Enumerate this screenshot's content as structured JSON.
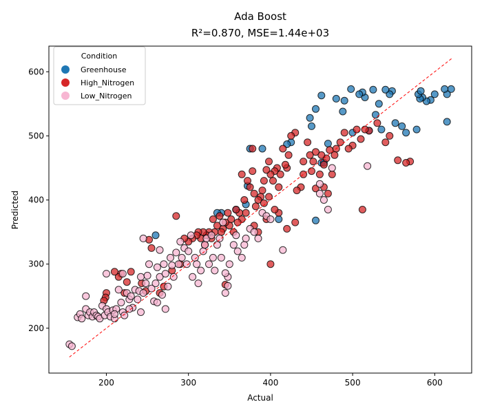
{
  "chart_data": {
    "type": "scatter",
    "title": "Ada Boost",
    "subtitle": "R²=0.870, MSE=1.44e+03",
    "xlabel": "Actual",
    "ylabel": "Predicted",
    "xlim": [
      130,
      645
    ],
    "ylim": [
      130,
      640
    ],
    "xticks": [
      200,
      300,
      400,
      500,
      600
    ],
    "yticks": [
      200,
      300,
      400,
      500,
      600
    ],
    "grid": false,
    "legend": {
      "title": "Condition",
      "placement": "top-left"
    },
    "reference_line": {
      "label": "",
      "from": [
        155,
        155
      ],
      "to": [
        622,
        622
      ],
      "color": "#ff0000",
      "style": "dashed"
    },
    "colors": {
      "Greenhouse": "#1f77b4",
      "High_Nitrogen": "#d62728",
      "Low_Nitrogen": "#f7b6d2"
    },
    "series": [
      {
        "name": "Greenhouse",
        "points": [
          [
            620,
            573
          ],
          [
            615,
            565
          ],
          [
            612,
            573
          ],
          [
            600,
            565
          ],
          [
            595,
            556
          ],
          [
            590,
            554
          ],
          [
            585,
            560
          ],
          [
            582,
            558
          ],
          [
            580,
            565
          ],
          [
            583,
            570
          ],
          [
            578,
            510
          ],
          [
            615,
            522
          ],
          [
            565,
            505
          ],
          [
            560,
            515
          ],
          [
            552,
            520
          ],
          [
            548,
            570
          ],
          [
            545,
            565
          ],
          [
            540,
            572
          ],
          [
            535,
            510
          ],
          [
            532,
            550
          ],
          [
            528,
            533
          ],
          [
            525,
            572
          ],
          [
            520,
            508
          ],
          [
            515,
            560
          ],
          [
            512,
            568
          ],
          [
            508,
            565
          ],
          [
            500,
            505
          ],
          [
            498,
            573
          ],
          [
            490,
            555
          ],
          [
            488,
            538
          ],
          [
            480,
            558
          ],
          [
            470,
            488
          ],
          [
            462,
            563
          ],
          [
            455,
            542
          ],
          [
            450,
            515
          ],
          [
            448,
            528
          ],
          [
            462,
            458
          ],
          [
            465,
            458
          ],
          [
            425,
            490
          ],
          [
            420,
            487
          ],
          [
            410,
            370
          ],
          [
            390,
            480
          ],
          [
            375,
            480
          ],
          [
            372,
            422
          ],
          [
            370,
            393
          ],
          [
            358,
            385
          ],
          [
            340,
            380
          ],
          [
            335,
            380
          ],
          [
            260,
            345
          ],
          [
            455,
            368
          ]
        ]
      },
      {
        "name": "High_Nitrogen",
        "points": [
          [
            570,
            460
          ],
          [
            565,
            458
          ],
          [
            555,
            462
          ],
          [
            545,
            500
          ],
          [
            540,
            490
          ],
          [
            530,
            520
          ],
          [
            520,
            508
          ],
          [
            515,
            510
          ],
          [
            512,
            385
          ],
          [
            510,
            495
          ],
          [
            505,
            510
          ],
          [
            500,
            485
          ],
          [
            495,
            480
          ],
          [
            490,
            505
          ],
          [
            485,
            490
          ],
          [
            480,
            480
          ],
          [
            478,
            470
          ],
          [
            472,
            478
          ],
          [
            468,
            465
          ],
          [
            465,
            455
          ],
          [
            462,
            470
          ],
          [
            460,
            440
          ],
          [
            455,
            475
          ],
          [
            452,
            460
          ],
          [
            450,
            445
          ],
          [
            448,
            470
          ],
          [
            445,
            490
          ],
          [
            440,
            460
          ],
          [
            437,
            420
          ],
          [
            432,
            415
          ],
          [
            430,
            505
          ],
          [
            425,
            500
          ],
          [
            422,
            470
          ],
          [
            420,
            450
          ],
          [
            418,
            455
          ],
          [
            415,
            480
          ],
          [
            412,
            440
          ],
          [
            410,
            420
          ],
          [
            408,
            450
          ],
          [
            405,
            445
          ],
          [
            403,
            430
          ],
          [
            400,
            440
          ],
          [
            398,
            460
          ],
          [
            395,
            447
          ],
          [
            392,
            430
          ],
          [
            390,
            415
          ],
          [
            388,
            405
          ],
          [
            385,
            400
          ],
          [
            382,
            390
          ],
          [
            380,
            410
          ],
          [
            378,
            445
          ],
          [
            375,
            420
          ],
          [
            372,
            430
          ],
          [
            370,
            380
          ],
          [
            368,
            400
          ],
          [
            365,
            370
          ],
          [
            362,
            380
          ],
          [
            360,
            365
          ],
          [
            358,
            385
          ],
          [
            355,
            350
          ],
          [
            352,
            370
          ],
          [
            350,
            360
          ],
          [
            348,
            380
          ],
          [
            345,
            365
          ],
          [
            342,
            355
          ],
          [
            340,
            350
          ],
          [
            338,
            375
          ],
          [
            335,
            360
          ],
          [
            332,
            350
          ],
          [
            330,
            370
          ],
          [
            328,
            340
          ],
          [
            325,
            350
          ],
          [
            322,
            345
          ],
          [
            320,
            330
          ],
          [
            318,
            350
          ],
          [
            315,
            340
          ],
          [
            312,
            350
          ],
          [
            310,
            345
          ],
          [
            305,
            340
          ],
          [
            300,
            335
          ],
          [
            295,
            340
          ],
          [
            290,
            300
          ],
          [
            285,
            375
          ],
          [
            280,
            290
          ],
          [
            270,
            265
          ],
          [
            265,
            255
          ],
          [
            255,
            325
          ],
          [
            252,
            338
          ],
          [
            248,
            258
          ],
          [
            243,
            270
          ],
          [
            230,
            288
          ],
          [
            225,
            272
          ],
          [
            222,
            255
          ],
          [
            218,
            285
          ],
          [
            215,
            280
          ],
          [
            210,
            288
          ],
          [
            200,
            255
          ],
          [
            199,
            248
          ],
          [
            197,
            243
          ],
          [
            345,
            268
          ],
          [
            400,
            300
          ],
          [
            420,
            355
          ],
          [
            410,
            380
          ],
          [
            430,
            365
          ],
          [
            440,
            440
          ],
          [
            465,
            420
          ],
          [
            470,
            410
          ],
          [
            475,
            440
          ],
          [
            380,
            360
          ],
          [
            385,
            350
          ],
          [
            395,
            370
          ],
          [
            405,
            385
          ],
          [
            365,
            440
          ],
          [
            392,
            395
          ],
          [
            398,
            405
          ],
          [
            378,
            480
          ],
          [
            455,
            418
          ]
        ]
      },
      {
        "name": "Low_Nitrogen",
        "points": [
          [
            155,
            175
          ],
          [
            158,
            172
          ],
          [
            165,
            217
          ],
          [
            168,
            222
          ],
          [
            170,
            215
          ],
          [
            175,
            230
          ],
          [
            178,
            220
          ],
          [
            180,
            225
          ],
          [
            183,
            218
          ],
          [
            185,
            225
          ],
          [
            188,
            220
          ],
          [
            190,
            218
          ],
          [
            192,
            215
          ],
          [
            195,
            235
          ],
          [
            198,
            220
          ],
          [
            200,
            230
          ],
          [
            202,
            225
          ],
          [
            205,
            218
          ],
          [
            208,
            228
          ],
          [
            210,
            215
          ],
          [
            212,
            230
          ],
          [
            215,
            260
          ],
          [
            218,
            240
          ],
          [
            220,
            225
          ],
          [
            222,
            220
          ],
          [
            225,
            255
          ],
          [
            228,
            245
          ],
          [
            230,
            250
          ],
          [
            232,
            232
          ],
          [
            235,
            260
          ],
          [
            238,
            245
          ],
          [
            240,
            258
          ],
          [
            242,
            280
          ],
          [
            245,
            255
          ],
          [
            248,
            270
          ],
          [
            250,
            282
          ],
          [
            252,
            300
          ],
          [
            255,
            262
          ],
          [
            258,
            242
          ],
          [
            260,
            270
          ],
          [
            262,
            295
          ],
          [
            265,
            280
          ],
          [
            268,
            252
          ],
          [
            270,
            300
          ],
          [
            272,
            285
          ],
          [
            275,
            265
          ],
          [
            278,
            310
          ],
          [
            280,
            298
          ],
          [
            282,
            280
          ],
          [
            285,
            318
          ],
          [
            288,
            300
          ],
          [
            290,
            335
          ],
          [
            292,
            310
          ],
          [
            295,
            325
          ],
          [
            298,
            300
          ],
          [
            300,
            320
          ],
          [
            303,
            345
          ],
          [
            305,
            280
          ],
          [
            308,
            310
          ],
          [
            310,
            300
          ],
          [
            312,
            270
          ],
          [
            315,
            290
          ],
          [
            318,
            320
          ],
          [
            320,
            330
          ],
          [
            322,
            340
          ],
          [
            325,
            300
          ],
          [
            328,
            345
          ],
          [
            330,
            310
          ],
          [
            332,
            290
          ],
          [
            335,
            330
          ],
          [
            338,
            340
          ],
          [
            340,
            310
          ],
          [
            342,
            365
          ],
          [
            345,
            255
          ],
          [
            348,
            280
          ],
          [
            350,
            300
          ],
          [
            355,
            330
          ],
          [
            358,
            345
          ],
          [
            360,
            320
          ],
          [
            365,
            310
          ],
          [
            368,
            330
          ],
          [
            370,
            340
          ],
          [
            375,
            355
          ],
          [
            380,
            350
          ],
          [
            385,
            340
          ],
          [
            390,
            380
          ],
          [
            395,
            375
          ],
          [
            400,
            370
          ],
          [
            415,
            322
          ],
          [
            460,
            425
          ],
          [
            465,
            400
          ],
          [
            460,
            410
          ],
          [
            470,
            385
          ],
          [
            475,
            450
          ],
          [
            518,
            453
          ],
          [
            175,
            250
          ],
          [
            200,
            285
          ],
          [
            220,
            285
          ],
          [
            245,
            340
          ],
          [
            265,
            322
          ],
          [
            210,
            222
          ],
          [
            228,
            230
          ],
          [
            242,
            225
          ],
          [
            262,
            240
          ],
          [
            272,
            230
          ],
          [
            345,
            286
          ],
          [
            348,
            266
          ]
        ]
      }
    ]
  }
}
